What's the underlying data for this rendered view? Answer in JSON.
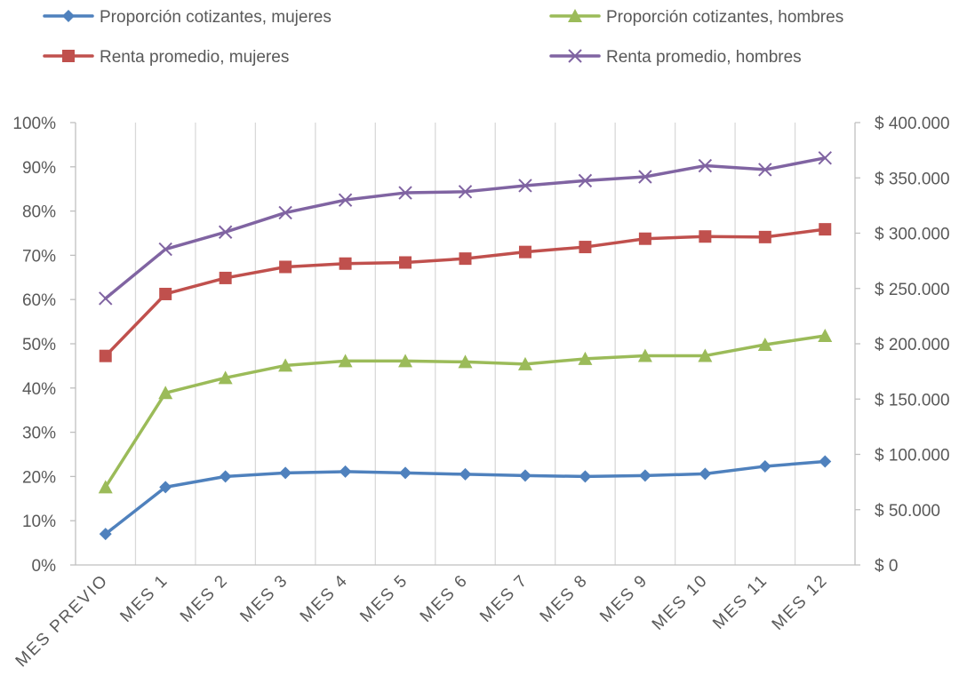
{
  "chart_data": {
    "type": "line",
    "categories": [
      "MES PREVIO",
      "MES 1",
      "MES 2",
      "MES 3",
      "MES 4",
      "MES 5",
      "MES 6",
      "MES 7",
      "MES 8",
      "MES 9",
      "MES 10",
      "MES 11",
      "MES 12"
    ],
    "legend_position": "top",
    "grid": {
      "vertical": true,
      "horizontal": false
    },
    "y_left": {
      "range": [
        0,
        100
      ],
      "ticks": [
        0,
        10,
        20,
        30,
        40,
        50,
        60,
        70,
        80,
        90,
        100
      ],
      "tick_labels": [
        "0%",
        "10%",
        "20%",
        "30%",
        "40%",
        "50%",
        "60%",
        "70%",
        "80%",
        "90%",
        "100%"
      ]
    },
    "y_right": {
      "range": [
        0,
        400000
      ],
      "ticks": [
        0,
        50000,
        100000,
        150000,
        200000,
        250000,
        300000,
        350000,
        400000
      ],
      "tick_labels": [
        "$ 0",
        "$ 50.000",
        "$ 100.000",
        "$ 150.000",
        "$ 200.000",
        "$ 250.000",
        "$ 300.000",
        "$ 350.000",
        "$ 400.000"
      ]
    },
    "series": [
      {
        "name": "Proporción cotizantes, mujeres",
        "axis": "left",
        "color": "#4F81BD",
        "marker": "diamond",
        "values": [
          7.0,
          17.6,
          20.0,
          20.8,
          21.1,
          20.8,
          20.5,
          20.2,
          20.0,
          20.2,
          20.6,
          22.3,
          23.4
        ]
      },
      {
        "name": "Proporción cotizantes, hombres",
        "axis": "left",
        "color": "#9BBB59",
        "marker": "triangle",
        "values": [
          17.6,
          38.9,
          42.3,
          45.1,
          46.1,
          46.1,
          45.9,
          45.4,
          46.6,
          47.3,
          47.3,
          49.8,
          51.8
        ]
      },
      {
        "name": "Renta promedio, mujeres",
        "axis": "right",
        "color": "#C0504D",
        "marker": "square",
        "values": [
          189000,
          245000,
          259500,
          269500,
          272500,
          273500,
          277000,
          283000,
          287500,
          295000,
          297000,
          296500,
          303500
        ]
      },
      {
        "name": "Renta promedio, hombres",
        "axis": "right",
        "color": "#8064A2",
        "marker": "x",
        "values": [
          241000,
          285500,
          301000,
          318500,
          330000,
          336500,
          337500,
          343000,
          347500,
          351000,
          361000,
          357500,
          368000
        ]
      }
    ]
  }
}
